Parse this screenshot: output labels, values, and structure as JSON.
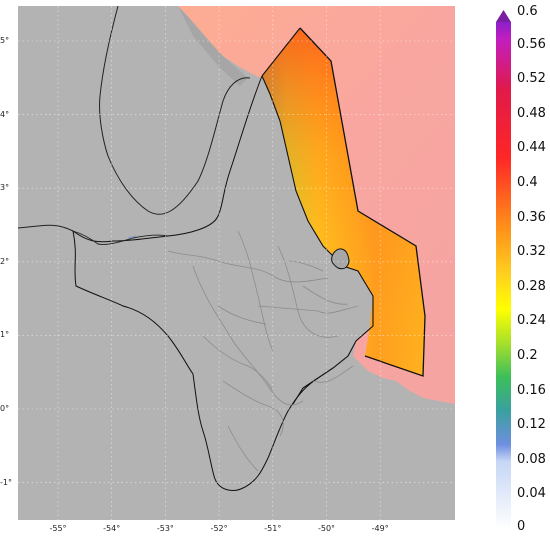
{
  "map": {
    "lat_ticks": [
      {
        "label": "5°",
        "lat": 5
      },
      {
        "label": "4°",
        "lat": 4
      },
      {
        "label": "3°",
        "lat": 3
      },
      {
        "label": "2°",
        "lat": 2
      },
      {
        "label": "1°",
        "lat": 1
      },
      {
        "label": "0°",
        "lat": 0
      },
      {
        "label": "-1°",
        "lat": -1
      }
    ],
    "lon_ticks": [
      {
        "label": "-55°",
        "lon": -55
      },
      {
        "label": "-54°",
        "lon": -54
      },
      {
        "label": "-53°",
        "lon": -53
      },
      {
        "label": "-52°",
        "lon": -52
      },
      {
        "label": "-51°",
        "lon": -51
      },
      {
        "label": "-50°",
        "lon": -50
      },
      {
        "label": "-49°",
        "lon": -49
      }
    ],
    "land_color": "#b4b4b4",
    "ocean_color": "#f7a7a0",
    "region_outline_color": "#111111",
    "river_color": "#8c8c8c"
  },
  "colorbar": {
    "min": 0,
    "max": 0.6,
    "extend_max_arrow_color": "#7b1fa2",
    "labels": [
      "0.6",
      "0.56",
      "0.52",
      "0.48",
      "0.44",
      "0.4",
      "0.36",
      "0.32",
      "0.28",
      "0.24",
      "0.2",
      "0.16",
      "0.12",
      "0.08",
      "0.04",
      "0"
    ],
    "stops": [
      {
        "value": 0.0,
        "color": "#ffffff"
      },
      {
        "value": 0.08,
        "color": "#c6d6f5"
      },
      {
        "value": 0.1,
        "color": "#6e8fe0"
      },
      {
        "value": 0.14,
        "color": "#3aa0a0"
      },
      {
        "value": 0.18,
        "color": "#3cbf5a"
      },
      {
        "value": 0.22,
        "color": "#a7e02b"
      },
      {
        "value": 0.26,
        "color": "#ffff00"
      },
      {
        "value": 0.3,
        "color": "#ffd21e"
      },
      {
        "value": 0.36,
        "color": "#ff8c1a"
      },
      {
        "value": 0.44,
        "color": "#ff2626"
      },
      {
        "value": 0.52,
        "color": "#e01a4a"
      },
      {
        "value": 0.58,
        "color": "#c21ec0"
      },
      {
        "value": 0.6,
        "color": "#8a1fc9"
      }
    ]
  }
}
